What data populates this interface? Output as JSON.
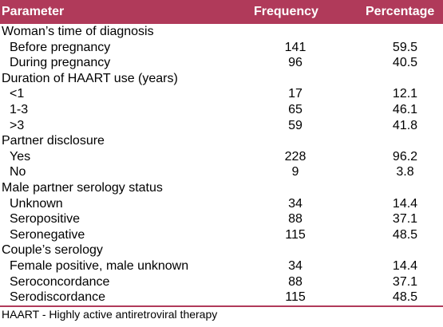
{
  "table": {
    "headers": {
      "parameter": "Parameter",
      "frequency": "Frequency",
      "percentage": "Percentage"
    },
    "rows": [
      {
        "type": "group",
        "label": "Woman’s time of diagnosis"
      },
      {
        "type": "item",
        "label": "Before pregnancy",
        "frequency": "141",
        "percentage": "59.5"
      },
      {
        "type": "item",
        "label": "During pregnancy",
        "frequency": "96",
        "percentage": "40.5"
      },
      {
        "type": "group",
        "label": "Duration of HAART use (years)"
      },
      {
        "type": "item",
        "label": "<1",
        "frequency": "17",
        "percentage": "12.1"
      },
      {
        "type": "item",
        "label": "1-3",
        "frequency": "65",
        "percentage": "46.1"
      },
      {
        "type": "item",
        "label": ">3",
        "frequency": "59",
        "percentage": "41.8"
      },
      {
        "type": "group",
        "label": "Partner disclosure"
      },
      {
        "type": "item",
        "label": "Yes",
        "frequency": "228",
        "percentage": "96.2"
      },
      {
        "type": "item",
        "label": "No",
        "frequency": "9",
        "percentage": "3.8"
      },
      {
        "type": "group",
        "label": "Male partner serology status"
      },
      {
        "type": "item",
        "label": "Unknown",
        "frequency": "34",
        "percentage": "14.4"
      },
      {
        "type": "item",
        "label": "Seropositive",
        "frequency": "88",
        "percentage": "37.1"
      },
      {
        "type": "item",
        "label": "Seronegative",
        "frequency": "115",
        "percentage": "48.5"
      },
      {
        "type": "group",
        "label": "Couple’s serology"
      },
      {
        "type": "item",
        "label": "Female positive, male unknown",
        "frequency": "34",
        "percentage": "14.4"
      },
      {
        "type": "item",
        "label": "Seroconcordance",
        "frequency": "88",
        "percentage": "37.1"
      },
      {
        "type": "item",
        "label": "Serodiscordance",
        "frequency": "115",
        "percentage": "48.5"
      }
    ],
    "footnote": "HAART - Highly active antiretroviral therapy"
  },
  "colors": {
    "header_bg": "#b03a5a",
    "header_text": "#ffffff",
    "rule": "#b03a5a"
  }
}
